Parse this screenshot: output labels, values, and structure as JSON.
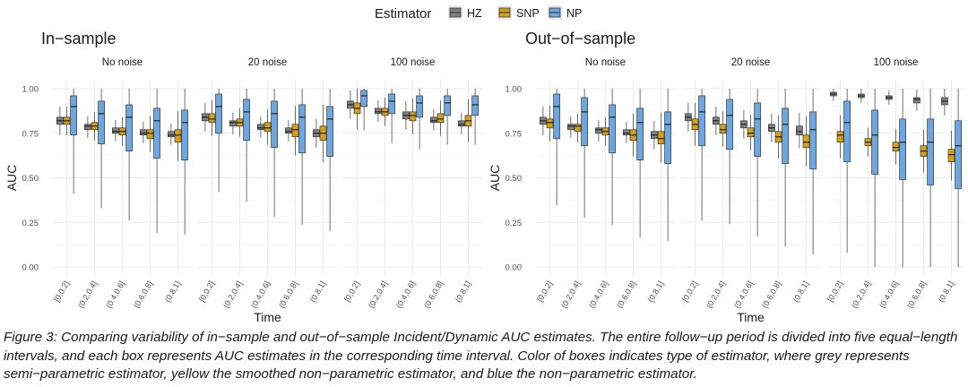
{
  "legend": {
    "title": "Estimator",
    "items": [
      {
        "label": "HZ",
        "color": "#808080"
      },
      {
        "label": "SNP",
        "color": "#D4A017"
      },
      {
        "label": "NP",
        "color": "#6EA6E0"
      }
    ]
  },
  "caption": "Figure 3: Comparing variability of in−sample and out−of−sample Incident/Dynamic AUC estimates. The entire follow−up period is divided into five equal−length intervals, and each box represents AUC estimates in the corresponding time interval. Color of boxes indicates type of estimator, where grey represents semi−parametric estimator, yellow the smoothed non−parametric estimator, and blue the non−parametric estimator.",
  "chart_data": [
    {
      "type": "boxplot",
      "title": "In−sample",
      "xlabel": "Time",
      "ylabel": "AUC",
      "ylim": [
        0,
        1
      ],
      "yticks": [
        "0.00",
        "0.25",
        "0.50",
        "0.75",
        "1.00"
      ],
      "categories": [
        "[0,0.2]",
        "(0.2,0.4]",
        "(0.4,0.6]",
        "(0.6,0.8]",
        "(0.8,1]"
      ],
      "facets": [
        {
          "label": "No noise",
          "boxes": {
            "HZ": [
              [
                0.8,
                0.82,
                0.84
              ],
              [
                0.77,
                0.79,
                0.8
              ],
              [
                0.75,
                0.76,
                0.78
              ],
              [
                0.74,
                0.75,
                0.77
              ],
              [
                0.73,
                0.74,
                0.76
              ]
            ],
            "SNP": [
              [
                0.8,
                0.82,
                0.84
              ],
              [
                0.77,
                0.79,
                0.81
              ],
              [
                0.74,
                0.76,
                0.78
              ],
              [
                0.72,
                0.75,
                0.77
              ],
              [
                0.7,
                0.74,
                0.77
              ]
            ],
            "NP": [
              [
                0.74,
                0.9,
                0.96
              ],
              [
                0.69,
                0.86,
                0.93
              ],
              [
                0.65,
                0.84,
                0.91
              ],
              [
                0.61,
                0.82,
                0.89
              ],
              [
                0.6,
                0.81,
                0.88
              ]
            ]
          }
        },
        {
          "label": "20 noise",
          "boxes": {
            "HZ": [
              [
                0.82,
                0.84,
                0.86
              ],
              [
                0.79,
                0.81,
                0.82
              ],
              [
                0.77,
                0.78,
                0.8
              ],
              [
                0.75,
                0.76,
                0.78
              ],
              [
                0.73,
                0.75,
                0.77
              ]
            ],
            "SNP": [
              [
                0.81,
                0.83,
                0.86
              ],
              [
                0.79,
                0.81,
                0.83
              ],
              [
                0.76,
                0.78,
                0.81
              ],
              [
                0.73,
                0.77,
                0.8
              ],
              [
                0.71,
                0.75,
                0.79
              ]
            ],
            "NP": [
              [
                0.75,
                0.9,
                0.97
              ],
              [
                0.71,
                0.87,
                0.94
              ],
              [
                0.67,
                0.86,
                0.93
              ],
              [
                0.64,
                0.84,
                0.91
              ],
              [
                0.62,
                0.83,
                0.9
              ]
            ]
          }
        },
        {
          "label": "100 noise",
          "boxes": {
            "HZ": [
              [
                0.89,
                0.91,
                0.93
              ],
              [
                0.86,
                0.87,
                0.89
              ],
              [
                0.83,
                0.85,
                0.87
              ],
              [
                0.81,
                0.82,
                0.84
              ],
              [
                0.79,
                0.8,
                0.82
              ]
            ],
            "SNP": [
              [
                0.86,
                0.89,
                0.92
              ],
              [
                0.85,
                0.87,
                0.89
              ],
              [
                0.82,
                0.85,
                0.87
              ],
              [
                0.81,
                0.83,
                0.86
              ],
              [
                0.79,
                0.82,
                0.85
              ]
            ],
            "NP": [
              [
                0.9,
                0.96,
                0.99
              ],
              [
                0.86,
                0.93,
                0.97
              ],
              [
                0.84,
                0.92,
                0.96
              ],
              [
                0.85,
                0.92,
                0.96
              ],
              [
                0.85,
                0.91,
                0.96
              ]
            ]
          }
        }
      ]
    },
    {
      "type": "boxplot",
      "title": "Out−of−sample",
      "xlabel": "Time",
      "ylabel": "AUC",
      "ylim": [
        0,
        1
      ],
      "yticks": [
        "0.00",
        "0.25",
        "0.50",
        "0.75",
        "1.00"
      ],
      "categories": [
        "[0,0.2]",
        "(0.2,0.4]",
        "(0.4,0.6]",
        "(0.6,0.8]",
        "(0.8,1]"
      ],
      "facets": [
        {
          "label": "No noise",
          "boxes": {
            "HZ": [
              [
                0.8,
                0.82,
                0.84
              ],
              [
                0.77,
                0.79,
                0.8
              ],
              [
                0.75,
                0.77,
                0.78
              ],
              [
                0.74,
                0.75,
                0.77
              ],
              [
                0.72,
                0.74,
                0.76
              ]
            ],
            "SNP": [
              [
                0.78,
                0.81,
                0.83
              ],
              [
                0.76,
                0.79,
                0.8
              ],
              [
                0.74,
                0.76,
                0.78
              ],
              [
                0.71,
                0.74,
                0.77
              ],
              [
                0.69,
                0.72,
                0.76
              ]
            ],
            "NP": [
              [
                0.72,
                0.9,
                0.97
              ],
              [
                0.68,
                0.87,
                0.95
              ],
              [
                0.64,
                0.84,
                0.91
              ],
              [
                0.6,
                0.81,
                0.89
              ],
              [
                0.58,
                0.8,
                0.87
              ]
            ]
          }
        },
        {
          "label": "20 noise",
          "boxes": {
            "HZ": [
              [
                0.82,
                0.84,
                0.86
              ],
              [
                0.8,
                0.82,
                0.84
              ],
              [
                0.78,
                0.8,
                0.82
              ],
              [
                0.76,
                0.78,
                0.8
              ],
              [
                0.74,
                0.76,
                0.79
              ]
            ],
            "SNP": [
              [
                0.77,
                0.8,
                0.83
              ],
              [
                0.75,
                0.77,
                0.8
              ],
              [
                0.73,
                0.75,
                0.78
              ],
              [
                0.7,
                0.73,
                0.76
              ],
              [
                0.67,
                0.7,
                0.74
              ]
            ],
            "NP": [
              [
                0.68,
                0.87,
                0.96
              ],
              [
                0.66,
                0.85,
                0.94
              ],
              [
                0.62,
                0.83,
                0.92
              ],
              [
                0.58,
                0.8,
                0.89
              ],
              [
                0.55,
                0.77,
                0.87
              ]
            ]
          }
        },
        {
          "label": "100 noise",
          "boxes": {
            "HZ": [
              [
                0.96,
                0.97,
                0.98
              ],
              [
                0.95,
                0.96,
                0.97
              ],
              [
                0.94,
                0.95,
                0.96
              ],
              [
                0.92,
                0.94,
                0.95
              ],
              [
                0.91,
                0.93,
                0.95
              ]
            ],
            "SNP": [
              [
                0.7,
                0.74,
                0.76
              ],
              [
                0.68,
                0.7,
                0.72
              ],
              [
                0.65,
                0.67,
                0.7
              ],
              [
                0.62,
                0.65,
                0.68
              ],
              [
                0.59,
                0.63,
                0.66
              ]
            ],
            "NP": [
              [
                0.59,
                0.81,
                0.93
              ],
              [
                0.52,
                0.74,
                0.88
              ],
              [
                0.49,
                0.7,
                0.83
              ],
              [
                0.46,
                0.7,
                0.83
              ],
              [
                0.44,
                0.68,
                0.82
              ]
            ]
          }
        }
      ]
    }
  ]
}
